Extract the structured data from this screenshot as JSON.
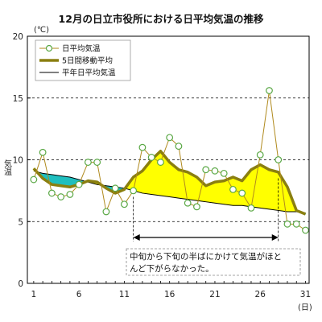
{
  "chart_data": {
    "type": "line",
    "title": "12月の日立市役所における日平均気温の推移",
    "ylabel": "気温",
    "yunit": "(℃)",
    "xunit": "(日)",
    "ylim": [
      0,
      20
    ],
    "xlim": [
      1,
      31
    ],
    "yticks": [
      0,
      5,
      10,
      15,
      20
    ],
    "xticks": [
      1,
      6,
      11,
      16,
      21,
      26,
      31
    ],
    "grid": "horizontal-dashed",
    "legend_position": "top-left",
    "x": [
      1,
      2,
      3,
      4,
      5,
      6,
      7,
      8,
      9,
      10,
      11,
      12,
      13,
      14,
      15,
      16,
      17,
      18,
      19,
      20,
      21,
      22,
      23,
      24,
      25,
      26,
      27,
      28,
      29,
      30,
      31
    ],
    "series": [
      {
        "name": "日平均気温",
        "style": "markers-line",
        "color": "#b08a1e",
        "marker_color": "#5aa845",
        "values": [
          8.4,
          10.6,
          7.3,
          7.0,
          7.2,
          8.0,
          9.8,
          9.8,
          5.8,
          7.7,
          6.4,
          7.5,
          11.0,
          10.2,
          9.8,
          11.8,
          11.1,
          6.5,
          6.2,
          9.2,
          9.1,
          8.9,
          7.6,
          7.3,
          6.1,
          10.4,
          15.6,
          10.0,
          4.8,
          4.8,
          4.3
        ]
      },
      {
        "name": "5日間移動平均",
        "style": "thick-line",
        "color": "#8a7f10",
        "values": [
          9.3,
          8.5,
          8.0,
          7.9,
          7.8,
          8.0,
          8.3,
          8.2,
          7.7,
          7.3,
          7.6,
          8.6,
          9.1,
          10.0,
          10.7,
          9.8,
          9.2,
          9.0,
          8.6,
          7.9,
          8.2,
          8.3,
          8.6,
          8.3,
          9.2,
          9.6,
          9.2,
          9.0,
          7.8,
          5.9,
          5.6
        ]
      },
      {
        "name": "平年日平均気温",
        "style": "thin-line",
        "color": "#000000",
        "values": [
          9.1,
          8.9,
          8.8,
          8.7,
          8.6,
          8.4,
          8.2,
          8.0,
          7.9,
          7.8,
          7.7,
          7.5,
          7.3,
          7.2,
          7.1,
          7.0,
          6.9,
          6.8,
          6.7,
          6.6,
          6.5,
          6.4,
          6.3,
          6.3,
          6.2,
          6.1,
          6.0,
          5.9,
          5.8,
          5.8,
          5.7
        ]
      }
    ],
    "fill_colors": {
      "above_normal": "#ffff00",
      "below_normal": "#1fbfbf"
    },
    "annotation": {
      "text_line1": "中旬から下旬の半ばにかけて気温がほと",
      "text_line2": "んど下がらなかった。",
      "arrow_from_day": 12,
      "arrow_to_day": 28
    }
  }
}
